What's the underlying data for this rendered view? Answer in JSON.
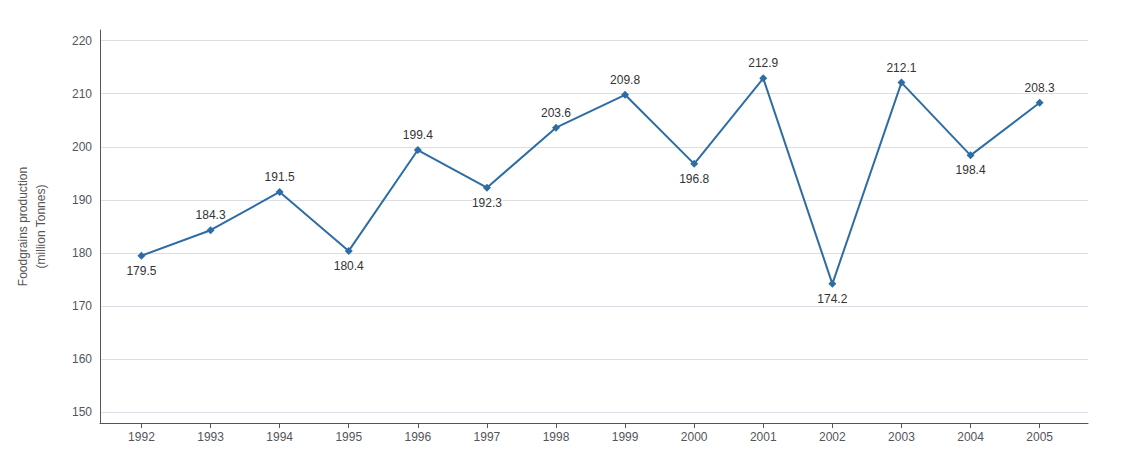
{
  "chart_data": {
    "type": "line",
    "x": [
      1992,
      1993,
      1994,
      1995,
      1996,
      1997,
      1998,
      1999,
      2000,
      2001,
      2002,
      2003,
      2004,
      2005
    ],
    "values": [
      179.5,
      184.3,
      191.5,
      180.4,
      199.4,
      192.3,
      203.6,
      209.8,
      196.8,
      212.9,
      174.2,
      212.1,
      198.4,
      208.3
    ],
    "color": "#2e6da4",
    "marker": "diamond",
    "ylabel": "Foodgrains production\n(million Tonnes)",
    "xlim": [
      1991.4,
      2005.7
    ],
    "xticks": [
      1992,
      1993,
      1994,
      1995,
      1996,
      1997,
      1998,
      1999,
      2000,
      2001,
      2002,
      2003,
      2004,
      2005
    ],
    "ylim": [
      148,
      222
    ],
    "yticks": [
      150,
      160,
      170,
      180,
      190,
      200,
      210,
      220
    ],
    "grid": true,
    "data_labels": true
  }
}
